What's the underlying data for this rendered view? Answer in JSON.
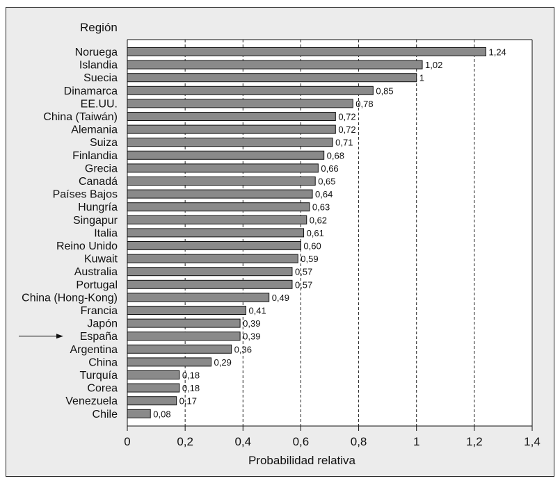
{
  "chart_data": {
    "type": "bar",
    "orientation": "horizontal",
    "title": "",
    "ylabel": "Región",
    "xlabel": "Probabilidad relativa",
    "xlim": [
      0,
      1.4
    ],
    "xticks": [
      0,
      0.2,
      0.4,
      0.6,
      0.8,
      1,
      1.2,
      1.4
    ],
    "xtick_labels": [
      "0",
      "0,2",
      "0,4",
      "0,6",
      "0,8",
      "1",
      "1,2",
      "1,4"
    ],
    "grid": "vertical dashed",
    "highlighted_category": "España",
    "categories": [
      "Noruega",
      "Islandia",
      "Suecia",
      "Dinamarca",
      "EE.UU.",
      "China (Taiwán)",
      "Alemania",
      "Suiza",
      "Finlandia",
      "Grecia",
      "Canadá",
      "Países Bajos",
      "Hungría",
      "Singapur",
      "Italia",
      "Reino Unido",
      "Kuwait",
      "Australia",
      "Portugal",
      "China (Hong-Kong)",
      "Francia",
      "Japón",
      "España",
      "Argentina",
      "China",
      "Turquía",
      "Corea",
      "Venezuela",
      "Chile"
    ],
    "values": [
      1.24,
      1.02,
      1.0,
      0.85,
      0.78,
      0.72,
      0.72,
      0.71,
      0.68,
      0.66,
      0.65,
      0.64,
      0.63,
      0.62,
      0.61,
      0.6,
      0.59,
      0.57,
      0.57,
      0.49,
      0.41,
      0.39,
      0.39,
      0.36,
      0.29,
      0.18,
      0.18,
      0.17,
      0.08
    ],
    "value_labels": [
      "1,24",
      "1,02",
      "1",
      "0,85",
      "0,78",
      "0,72",
      "0,72",
      "0,71",
      "0,68",
      "0,66",
      "0,65",
      "0,64",
      "0,63",
      "0,62",
      "0,61",
      "0,60",
      "0,59",
      "0,57",
      "0,57",
      "0,49",
      "0,41",
      "0,39",
      "0,39",
      "0,36",
      "0,29",
      "0,18",
      "0,18",
      "0,17",
      "0,08"
    ],
    "bar_color": "#8a8a8a",
    "bar_border_color": "#111111",
    "background_color": "#ececec"
  }
}
